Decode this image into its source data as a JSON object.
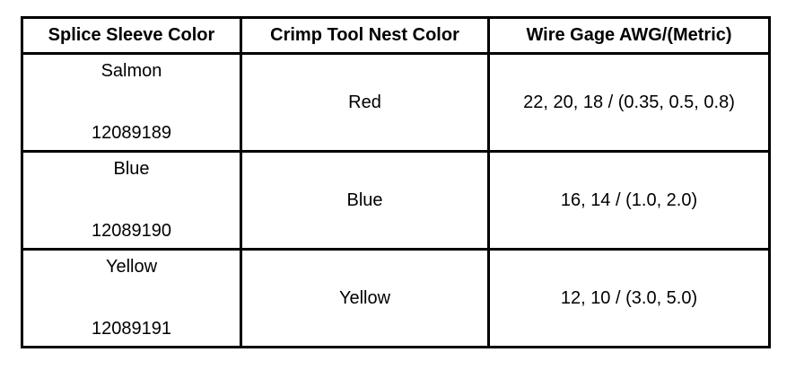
{
  "headers": [
    "Splice Sleeve Color",
    "Crimp Tool Nest Color",
    "Wire Gage AWG/(Metric)"
  ],
  "rows": [
    {
      "sleeve_color": "Salmon",
      "part_number": "12089189",
      "nest_color": "Red",
      "wire_gage": "22, 20, 18 / (0.35, 0.5, 0.8)"
    },
    {
      "sleeve_color": "Blue",
      "part_number": "12089190",
      "nest_color": "Blue",
      "wire_gage": "16, 14 / (1.0, 2.0)"
    },
    {
      "sleeve_color": "Yellow",
      "part_number": "12089191",
      "nest_color": "Yellow",
      "wire_gage": "12, 10 / (3.0, 5.0)"
    }
  ]
}
